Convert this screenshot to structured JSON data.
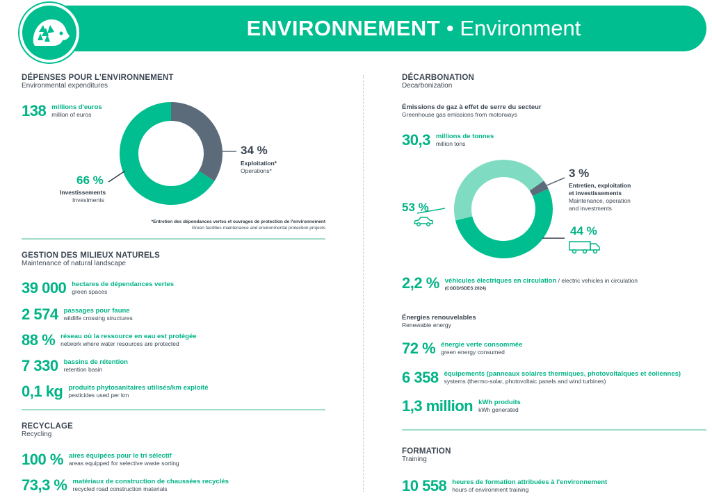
{
  "header": {
    "title_fr": "ENVIRONNEMENT",
    "separator": "•",
    "title_en": "Environment",
    "logo_icon": "hedgehog-icon"
  },
  "colors": {
    "brand": "#00be8f",
    "accent": "#00b386",
    "light": "#7fdcc2",
    "slate": "#5c6b7a"
  },
  "expenditures": {
    "title": "DÉPENSES POUR L’ENVIRONNEMENT",
    "subtitle": "Environmental expenditures",
    "total_value": "138",
    "total_fr": "millions d'euros",
    "total_en": "million of euros",
    "slice_ops_pct": "34 %",
    "slice_ops_fr": "Exploitation*",
    "slice_ops_en": "Operations*",
    "slice_inv_pct": "66 %",
    "slice_inv_fr": "Investissements",
    "slice_inv_en": "Investments",
    "note_fr": "*Entretien des dépendances vertes et ouvrages de protection de l'environnement",
    "note_en": "Green facilities maintenance and environmental protection projects"
  },
  "natural": {
    "title": "GESTION DES MILIEUX NATURELS",
    "subtitle": "Maintenance of natural landscape",
    "items": [
      {
        "value": "39 000",
        "fr": "hectares de dépendances vertes",
        "en": "green spaces"
      },
      {
        "value": "2 574",
        "fr": "passages pour faune",
        "en": "wildlife crossing structures"
      },
      {
        "value": "88 %",
        "fr": "réseau où la ressource en eau est protégée",
        "en": "network where water resources are protected"
      },
      {
        "value": "7 330",
        "fr": "bassins de rétention",
        "en": "retention basin"
      },
      {
        "value": "0,1 kg",
        "fr": "produits phytosanitaires utilisés/km exploité",
        "en": "pesticides used per km"
      }
    ]
  },
  "recycling": {
    "title": "RECYCLAGE",
    "subtitle": "Recycling",
    "items": [
      {
        "value": "100 %",
        "fr": "aires équipées pour le tri sélectif",
        "en": "areas equipped for selective waste sorting"
      },
      {
        "value": "73,3 %",
        "fr": "matériaux de construction de chaussées recyclés",
        "en": "recycled road construction materials"
      }
    ]
  },
  "decarbonation": {
    "title": "DÉCARBONATION",
    "subtitle": "Decarbonization",
    "ghg_title": "Émissions de gaz à effet de serre du secteur",
    "ghg_sub": "Greenhouse gas emissions from motorways",
    "ghg_value": "30,3",
    "ghg_fr": "millions de tonnes",
    "ghg_en": "million tons",
    "slice_maint_pct": "3 %",
    "slice_maint_fr1": "Entretien, exploitation",
    "slice_maint_fr2": "et investissements",
    "slice_maint_en1": "Maintenance, operation",
    "slice_maint_en2": "and investments",
    "slice_car_pct": "53 %",
    "car_icon": "car-icon",
    "slice_truck_pct": "44 %",
    "truck_icon": "truck-icon",
    "ev_value": "2,2 %",
    "ev_fr": "véhicules électriques en circulation",
    "ev_sep": " / ",
    "ev_en": "electric vehicles in circulation",
    "ev_source": "(CGDD/SDES 2024)",
    "renew_title": "Énergies renouvelables",
    "renew_sub": "Renewable energy",
    "renew_items": [
      {
        "value": "72 %",
        "fr": "énergie verte consommée",
        "en": "green energy consumed"
      },
      {
        "value": "6 358",
        "fr": "équipements (panneaux solaires thermiques, photovoltaïques et éoliennes)",
        "en": "systems (thermo-solar, photovoltaic panels and wind turbines)"
      },
      {
        "value": "1,3 million",
        "fr": "kWh produits",
        "en": "kWh generated"
      }
    ]
  },
  "training": {
    "title": "FORMATION",
    "subtitle": "Training",
    "value": "10 558",
    "fr": "heures de formation attribuées à l'environnement",
    "en": "hours of environment training"
  },
  "chart_data": [
    {
      "type": "pie",
      "style": "donut",
      "slices": [
        {
          "label": "Exploitation* / Operations*",
          "value": 34,
          "color": "#5c6b7a"
        },
        {
          "label": "Investissements / Investments",
          "value": 66,
          "color": "#00be8f"
        }
      ]
    },
    {
      "type": "pie",
      "style": "donut",
      "slices": [
        {
          "label": "Entretien, exploitation et investissements",
          "value": 3,
          "color": "#5c6b7a"
        },
        {
          "label": "car",
          "value": 53,
          "color": "#00be8f"
        },
        {
          "label": "truck",
          "value": 44,
          "color": "#7fdcc2"
        }
      ]
    }
  ]
}
